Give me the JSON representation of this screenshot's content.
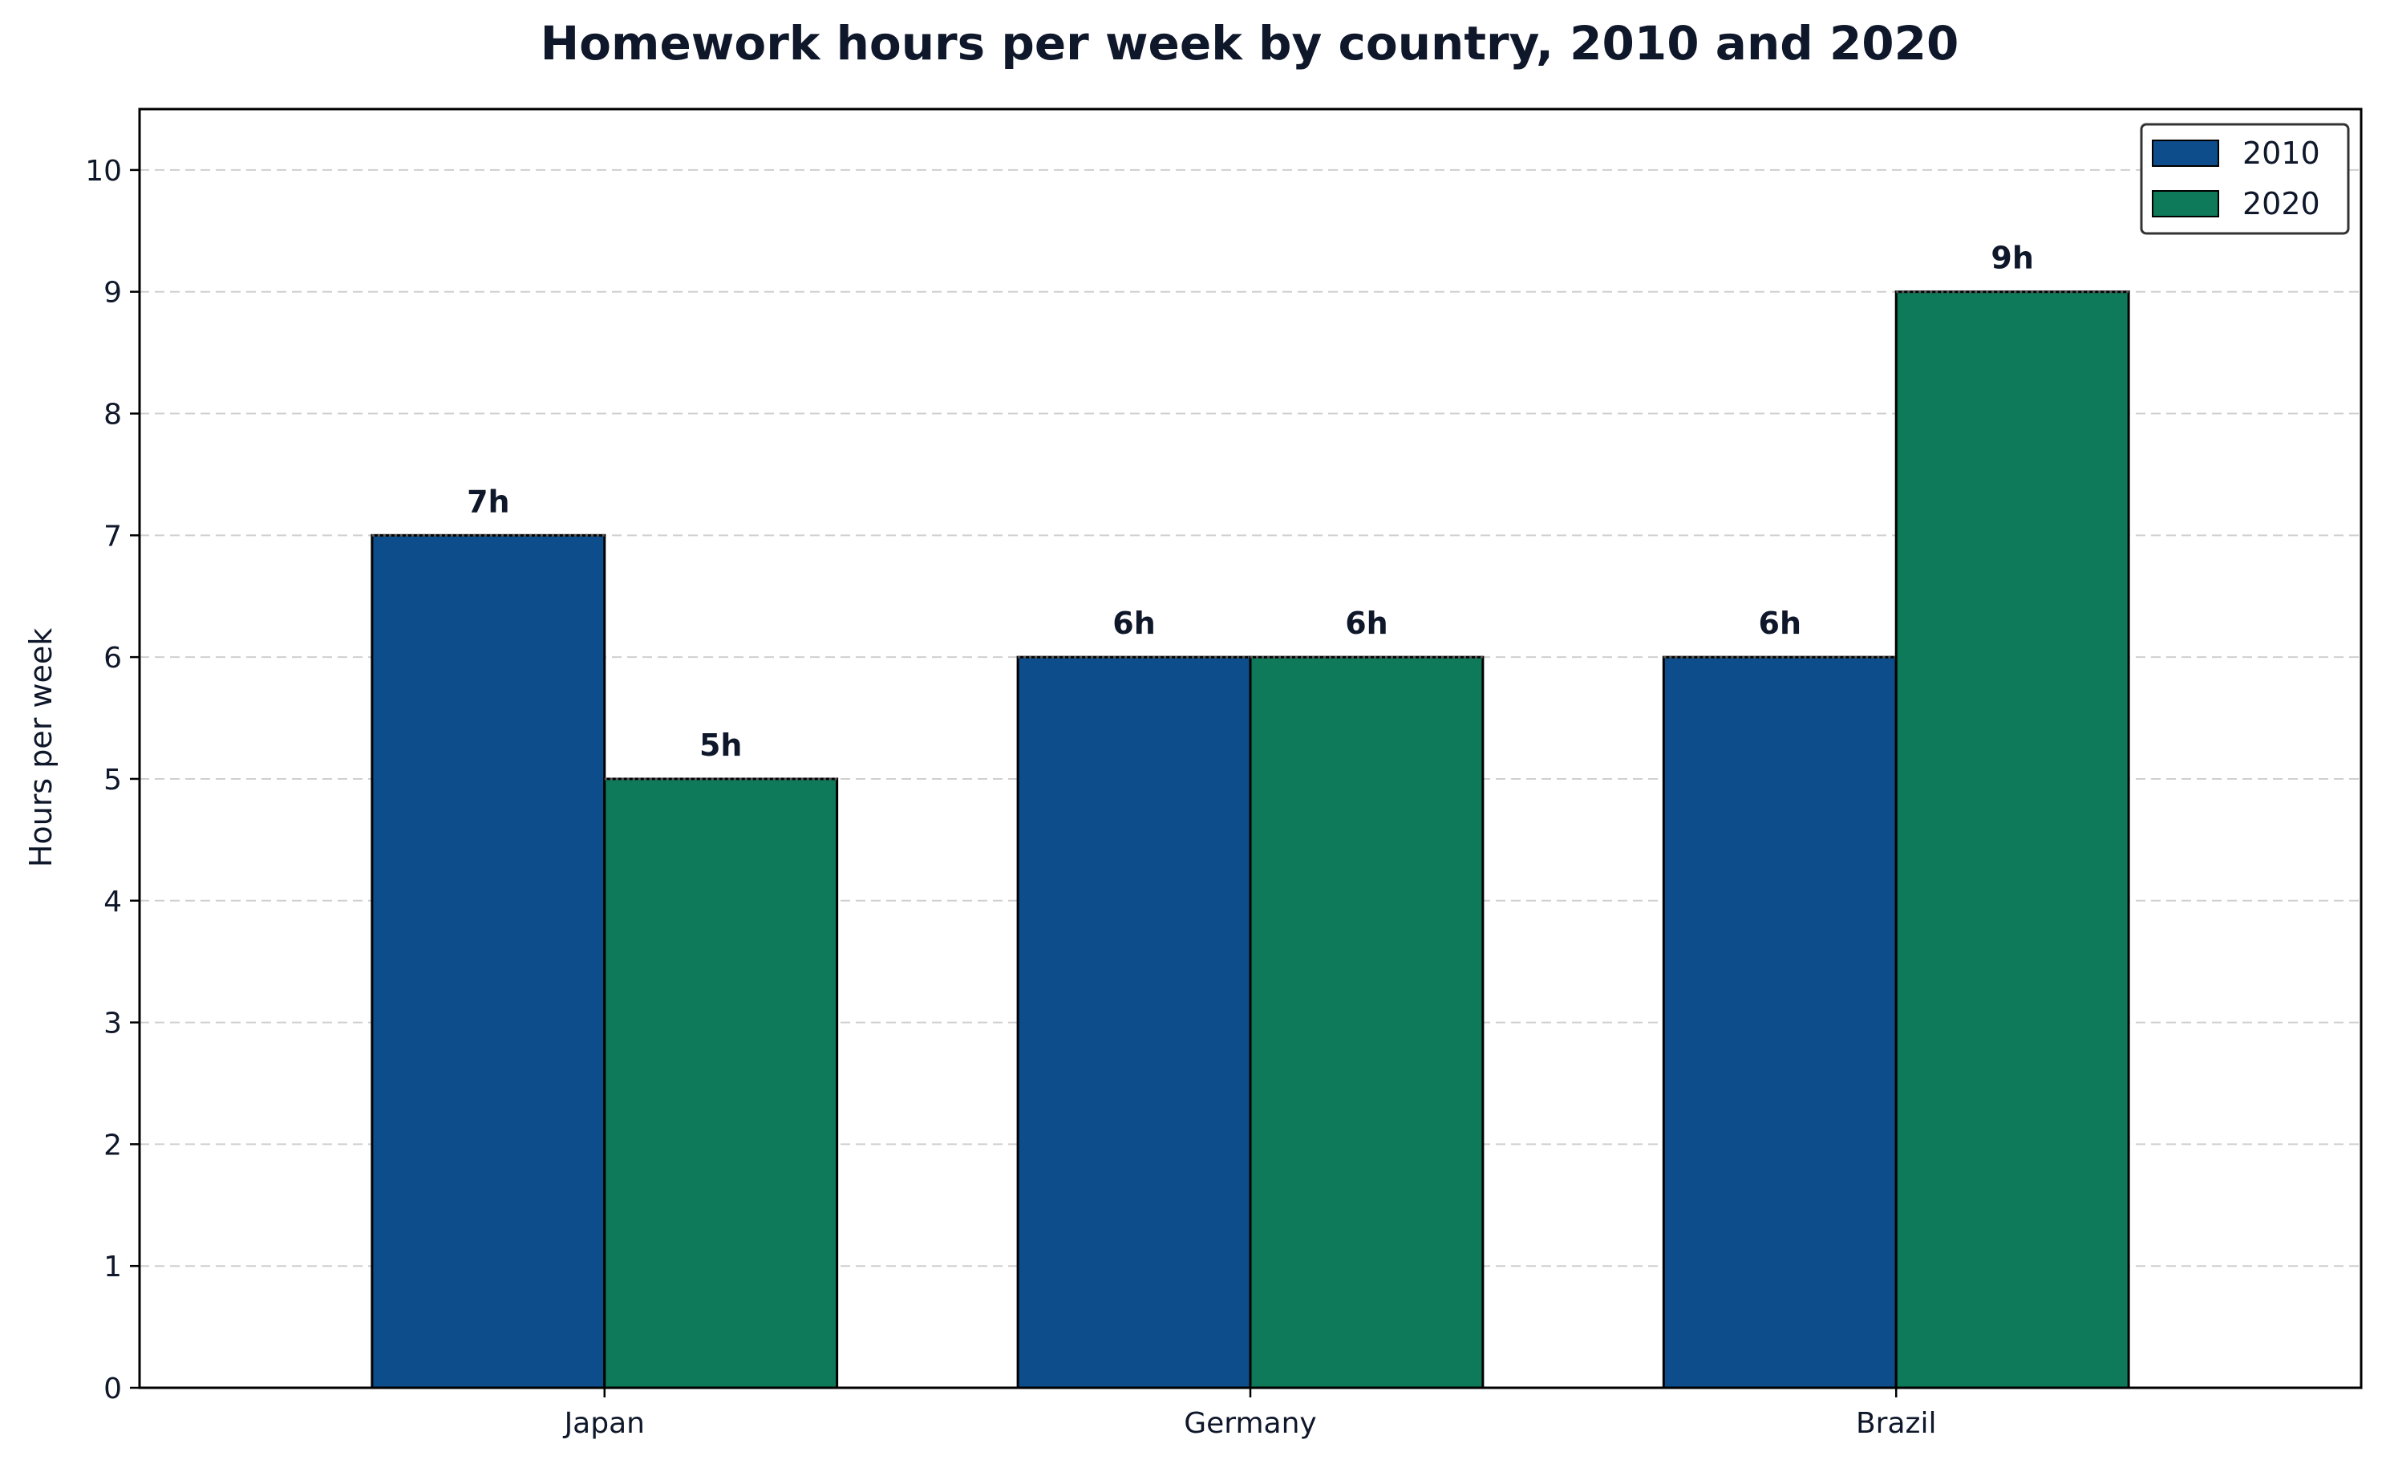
{
  "chart_data": {
    "type": "bar",
    "title": "Homework hours per week by country, 2010 and 2020",
    "xlabel": "",
    "ylabel": "Hours per week",
    "categories": [
      "Japan",
      "Germany",
      "Brazil"
    ],
    "series": [
      {
        "name": "2010",
        "color": "#0d4d8c",
        "values": [
          7,
          6,
          6
        ],
        "labels": [
          "7h",
          "6h",
          "6h"
        ]
      },
      {
        "name": "2020",
        "color": "#0f7a5a",
        "values": [
          5,
          6,
          9
        ],
        "labels": [
          "5h",
          "6h",
          "9h"
        ]
      }
    ],
    "ylim": [
      0,
      10.5
    ],
    "yticks": [
      0,
      1,
      2,
      3,
      4,
      5,
      6,
      7,
      8,
      9,
      10
    ],
    "grid": "y-dashed",
    "legend": "top-right"
  }
}
